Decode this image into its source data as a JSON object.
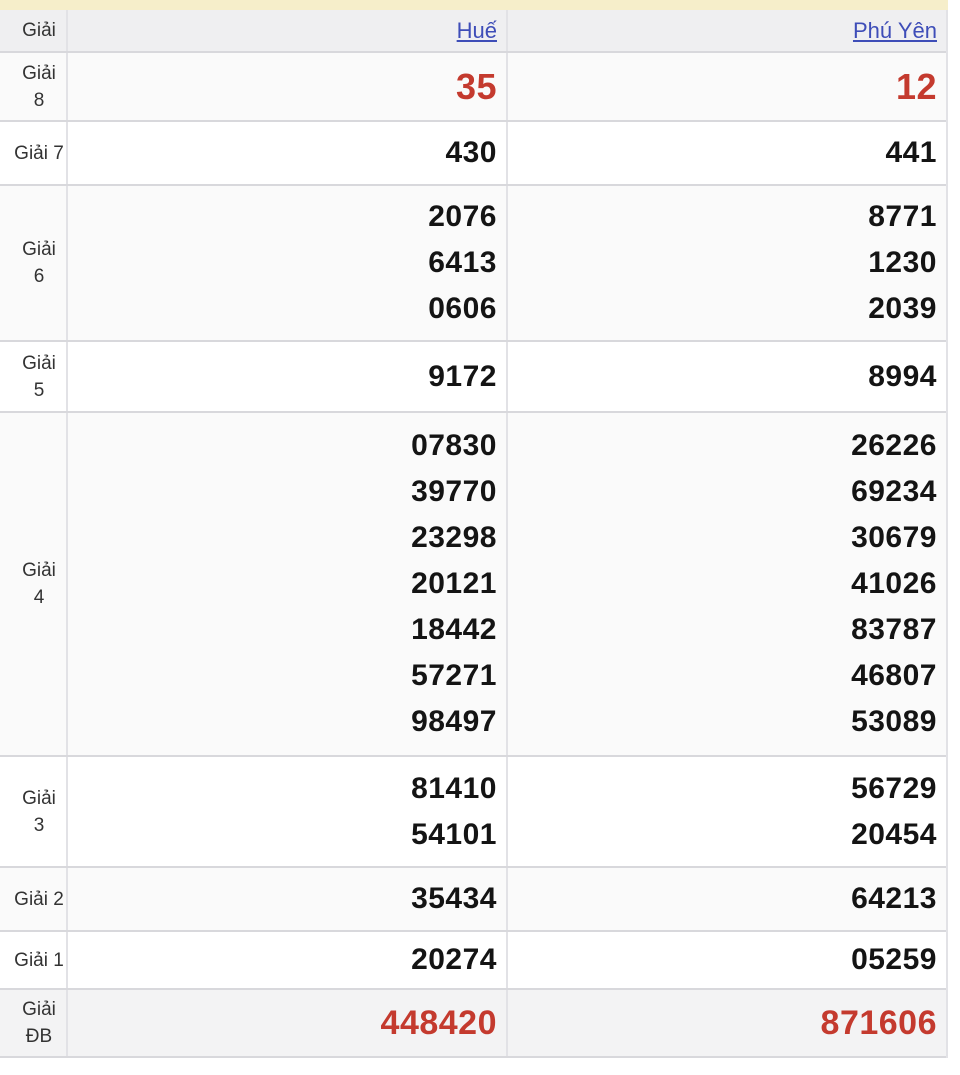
{
  "colors": {
    "accent_red": "#c43a2e",
    "link_blue": "#3e4db8",
    "strip_yellow": "#f6eeca"
  },
  "table": {
    "header": {
      "prize_label": "Giải",
      "col1_label": "Huế",
      "col2_label": "Phú Yên"
    },
    "rows": [
      {
        "id": "g8",
        "label_lines": [
          "Giải",
          "8"
        ],
        "hue": [
          "35"
        ],
        "phu_yen": [
          "12"
        ],
        "highlight": true
      },
      {
        "id": "g7",
        "label_lines": [
          "Giải 7"
        ],
        "hue": [
          "430"
        ],
        "phu_yen": [
          "441"
        ],
        "highlight": false
      },
      {
        "id": "g6",
        "label_lines": [
          "Giải",
          "6"
        ],
        "hue": [
          "2076",
          "6413",
          "0606"
        ],
        "phu_yen": [
          "8771",
          "1230",
          "2039"
        ],
        "highlight": false
      },
      {
        "id": "g5",
        "label_lines": [
          "Giải",
          "5"
        ],
        "hue": [
          "9172"
        ],
        "phu_yen": [
          "8994"
        ],
        "highlight": false
      },
      {
        "id": "g4",
        "label_lines": [
          "Giải",
          "4"
        ],
        "hue": [
          "07830",
          "39770",
          "23298",
          "20121",
          "18442",
          "57271",
          "98497"
        ],
        "phu_yen": [
          "26226",
          "69234",
          "30679",
          "41026",
          "83787",
          "46807",
          "53089"
        ],
        "highlight": false
      },
      {
        "id": "g3",
        "label_lines": [
          "Giải",
          "3"
        ],
        "hue": [
          "81410",
          "54101"
        ],
        "phu_yen": [
          "56729",
          "20454"
        ],
        "highlight": false
      },
      {
        "id": "g2",
        "label_lines": [
          "Giải 2"
        ],
        "hue": [
          "35434"
        ],
        "phu_yen": [
          "64213"
        ],
        "highlight": false
      },
      {
        "id": "g1",
        "label_lines": [
          "Giải 1"
        ],
        "hue": [
          "20274"
        ],
        "phu_yen": [
          "05259"
        ],
        "highlight": false
      },
      {
        "id": "db",
        "label_lines": [
          "Giải",
          "ĐB"
        ],
        "hue": [
          "448420"
        ],
        "phu_yen": [
          "871606"
        ],
        "highlight": true
      }
    ]
  }
}
